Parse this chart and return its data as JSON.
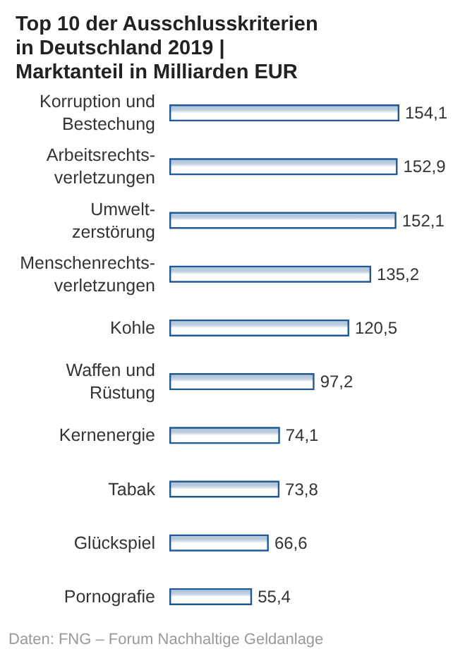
{
  "chart_data": {
    "type": "bar",
    "orientation": "horizontal",
    "title": "Top 10 der Ausschlusskriterien in Deutschland 2019 | Marktanteil in Milliarden EUR",
    "categories": [
      "Korruption und Bestechung",
      "Arbeitsrechts-verletzungen",
      "Umwelt-zerstörung",
      "Menschenrechts-verletzungen",
      "Kohle",
      "Waffen und Rüstung",
      "Kernenergie",
      "Tabak",
      "Glückspiel",
      "Pornografie"
    ],
    "values": [
      154.1,
      152.9,
      152.1,
      135.2,
      120.5,
      97.2,
      74.1,
      73.8,
      66.6,
      55.4
    ],
    "value_labels": [
      "154,1",
      "152,9",
      "152,1",
      "135,2",
      "120,5",
      "97,2",
      "74,1",
      "73,8",
      "66,6",
      "55,4"
    ],
    "color": "#1f5a96",
    "annotations": [
      "Daten: FNG – Forum Nachhaltige Geldanlage"
    ]
  }
}
